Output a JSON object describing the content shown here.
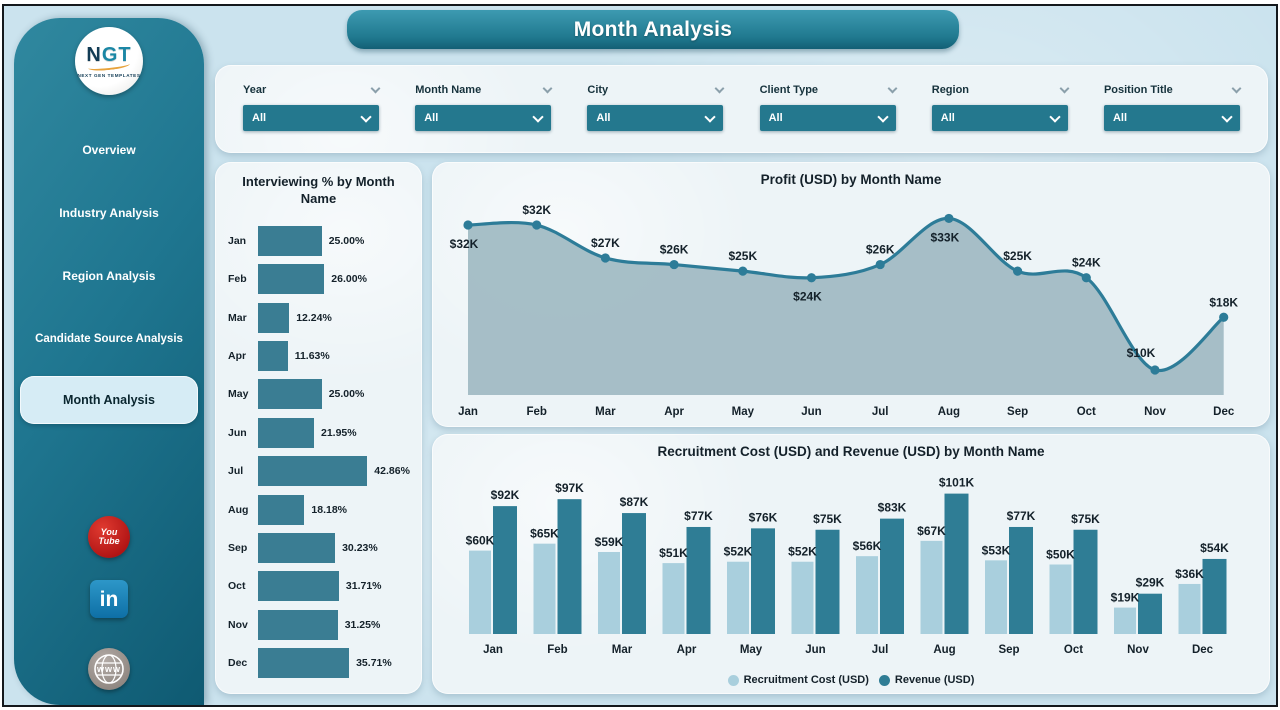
{
  "window": {
    "title": "Month Analysis"
  },
  "sidebar": {
    "logo": {
      "abbr": "NGT",
      "tagline": "NEXT GEN TEMPLATES"
    },
    "items": [
      {
        "label": "Overview",
        "active": false
      },
      {
        "label": "Industry Analysis",
        "active": false
      },
      {
        "label": "Region Analysis",
        "active": false
      },
      {
        "label": "Candidate Source Analysis",
        "active": false
      },
      {
        "label": "Month Analysis",
        "active": true
      }
    ],
    "social": [
      {
        "name": "youtube",
        "line1": "You",
        "line2": "Tube"
      },
      {
        "name": "linkedin",
        "glyph": "in"
      },
      {
        "name": "website",
        "glyph": "www"
      }
    ]
  },
  "filters": {
    "slicers": [
      {
        "label": "Year",
        "value": "All"
      },
      {
        "label": "Month Name",
        "value": "All"
      },
      {
        "label": "City",
        "value": "All"
      },
      {
        "label": "Client Type",
        "value": "All"
      },
      {
        "label": "Region",
        "value": "All"
      },
      {
        "label": "Position Title",
        "value": "All"
      }
    ]
  },
  "chart_data": [
    {
      "type": "bar",
      "orientation": "horizontal",
      "title": "Interviewing % by Month Name",
      "categories": [
        "Jan",
        "Feb",
        "Mar",
        "Apr",
        "May",
        "Jun",
        "Jul",
        "Aug",
        "Sep",
        "Oct",
        "Nov",
        "Dec"
      ],
      "values": [
        25.0,
        26.0,
        12.24,
        11.63,
        25.0,
        21.95,
        42.86,
        18.18,
        30.23,
        31.71,
        31.25,
        35.71
      ],
      "labels": [
        "25.00%",
        "26.00%",
        "12.24%",
        "11.63%",
        "25.00%",
        "21.95%",
        "42.86%",
        "18.18%",
        "30.23%",
        "31.71%",
        "31.25%",
        "35.71%"
      ],
      "xlim": [
        0,
        45
      ],
      "bar_color": "#3a7d93",
      "grid": false
    },
    {
      "type": "area",
      "title": "Profit (USD) by Month Name",
      "categories": [
        "Jan",
        "Feb",
        "Mar",
        "Apr",
        "May",
        "Jun",
        "Jul",
        "Aug",
        "Sep",
        "Oct",
        "Nov",
        "Dec"
      ],
      "values": [
        32,
        32,
        27,
        26,
        25,
        24,
        26,
        33,
        25,
        24,
        10,
        18
      ],
      "labels": [
        "$32K",
        "$32K",
        "$27K",
        "$26K",
        "$25K",
        "$24K",
        "$26K",
        "$33K",
        "$25K",
        "$24K",
        "$10K",
        "$18K"
      ],
      "label_positions": [
        "below",
        "above",
        "above",
        "above",
        "above",
        "below",
        "above",
        "below",
        "above",
        "above",
        "above-left",
        "above"
      ],
      "ylim": [
        0,
        35
      ],
      "line_color": "#2d7c98",
      "fill_color": "#9db8c1",
      "marker": "circle",
      "grid": false
    },
    {
      "type": "bar",
      "orientation": "vertical",
      "title": "Recruitment Cost (USD) and Revenue (USD) by Month Name",
      "categories": [
        "Jan",
        "Feb",
        "Mar",
        "Apr",
        "May",
        "Jun",
        "Jul",
        "Aug",
        "Sep",
        "Oct",
        "Nov",
        "Dec"
      ],
      "series": [
        {
          "name": "Recruitment Cost (USD)",
          "color": "#a9cfdd",
          "values": [
            60,
            65,
            59,
            51,
            52,
            52,
            56,
            67,
            53,
            50,
            19,
            36
          ],
          "labels": [
            "$60K",
            "$65K",
            "$59K",
            "$51K",
            "$52K",
            "$52K",
            "$56K",
            "$67K",
            "$53K",
            "$50K",
            "$19K",
            "$36K"
          ]
        },
        {
          "name": "Revenue (USD)",
          "color": "#2f7d95",
          "values": [
            92,
            97,
            87,
            77,
            76,
            75,
            83,
            101,
            77,
            75,
            29,
            54
          ],
          "labels": [
            "$92K",
            "$97K",
            "$87K",
            "$77K",
            "$76K",
            "$75K",
            "$83K",
            "$101K",
            "$77K",
            "$75K",
            "$29K",
            "$54K"
          ]
        }
      ],
      "legend_position": "bottom",
      "ylim": [
        0,
        110
      ],
      "grid": false
    }
  ],
  "colors": {
    "canvas_bg": "#cbe3ee",
    "card_bg": "#edf4f7",
    "accent_teal": "#24788e",
    "bar_teal": "#3a7d93",
    "light_series": "#a9cfdd",
    "dark_series": "#2f7d95",
    "area_fill": "#9db8c1",
    "line": "#2d7c98",
    "label_text": "#14212a",
    "youtube_red": "#c01818",
    "linkedin_blue": "#0e6fa6"
  }
}
